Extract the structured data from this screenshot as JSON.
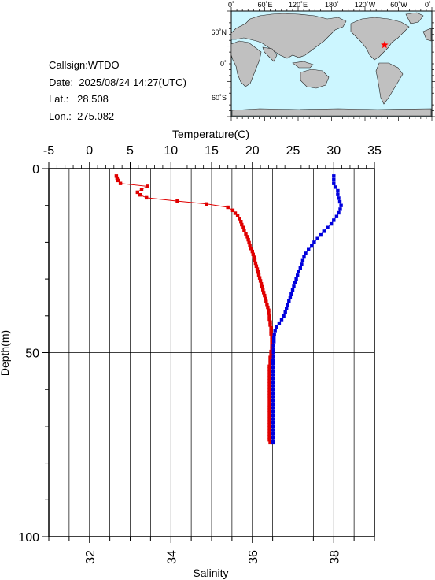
{
  "meta": {
    "callsign_label": "Callsign:",
    "callsign": "WTDO",
    "date_label": "Date:",
    "date": "2025/08/24 14:27(UTC)",
    "lat_label": "Lat.:",
    "lat": "28.508",
    "lon_label": "Lon.:",
    "lon": "275.082"
  },
  "map": {
    "lon_ticks": [
      "0˚",
      "60˚E",
      "120˚E",
      "180˚",
      "120˚W",
      "60˚W",
      "0˚"
    ],
    "lat_ticks": [
      "60˚N",
      "0˚",
      "60˚S"
    ],
    "ocean_color": "#ccf6ff",
    "land_color": "#c0c0c0",
    "marker_color": "#ff0000",
    "marker": {
      "lat": 28.508,
      "lon": 275.082
    }
  },
  "chart_data": {
    "type": "scatter",
    "top_xlabel": "Temperature(C)",
    "bottom_xlabel": "Salinity",
    "ylabel": "Depth(m)",
    "ylim": [
      100,
      0
    ],
    "temperature_xlim": [
      -5,
      35
    ],
    "salinity_xlim": [
      31,
      39
    ],
    "temperature_ticks": [
      "-5",
      "0",
      "5",
      "10",
      "15",
      "20",
      "25",
      "30",
      "35"
    ],
    "salinity_ticks": [
      "32",
      "34",
      "36",
      "38"
    ],
    "depth_ticks": [
      "0",
      "50",
      "100"
    ],
    "grid": true,
    "series": [
      {
        "key": "temperature",
        "color": "#e00000",
        "points": [
          [
            3.3,
            2.0
          ],
          [
            3.4,
            2.6
          ],
          [
            3.5,
            3.2
          ],
          [
            3.8,
            4.0
          ],
          [
            7.1,
            4.8
          ],
          [
            6.4,
            5.6
          ],
          [
            5.9,
            6.4
          ],
          [
            6.2,
            7.1
          ],
          [
            7.0,
            7.9
          ],
          [
            10.8,
            8.8
          ],
          [
            14.4,
            9.6
          ],
          [
            17.0,
            10.5
          ],
          [
            17.6,
            11.3
          ],
          [
            17.9,
            12.1
          ],
          [
            18.2,
            12.8
          ],
          [
            18.4,
            13.6
          ],
          [
            18.6,
            14.4
          ],
          [
            18.7,
            15.2
          ],
          [
            18.9,
            16.0
          ],
          [
            19.0,
            16.8
          ],
          [
            19.2,
            17.7
          ],
          [
            19.4,
            18.5
          ],
          [
            19.5,
            19.3
          ],
          [
            19.6,
            20.1
          ],
          [
            19.7,
            20.9
          ],
          [
            19.8,
            21.7
          ],
          [
            20.0,
            22.5
          ],
          [
            20.1,
            23.3
          ],
          [
            20.2,
            24.1
          ],
          [
            20.3,
            24.9
          ],
          [
            20.4,
            25.7
          ],
          [
            20.5,
            26.5
          ],
          [
            20.6,
            27.3
          ],
          [
            20.7,
            28.1
          ],
          [
            20.8,
            28.9
          ],
          [
            20.9,
            29.7
          ],
          [
            21.0,
            30.5
          ],
          [
            21.1,
            31.3
          ],
          [
            21.2,
            32.1
          ],
          [
            21.3,
            32.9
          ],
          [
            21.4,
            33.7
          ],
          [
            21.5,
            34.5
          ],
          [
            21.6,
            35.3
          ],
          [
            21.7,
            36.1
          ],
          [
            21.8,
            36.9
          ],
          [
            21.9,
            37.7
          ],
          [
            22.0,
            38.5
          ],
          [
            22.0,
            39.3
          ],
          [
            22.1,
            40.1
          ],
          [
            22.1,
            40.9
          ],
          [
            22.2,
            41.7
          ],
          [
            22.2,
            42.5
          ],
          [
            22.3,
            43.3
          ],
          [
            22.3,
            44.1
          ],
          [
            22.3,
            44.9
          ],
          [
            22.4,
            45.7
          ],
          [
            22.4,
            46.5
          ],
          [
            22.4,
            47.3
          ],
          [
            22.4,
            48.1
          ],
          [
            22.4,
            48.9
          ],
          [
            22.3,
            49.7
          ],
          [
            22.3,
            50.5
          ],
          [
            22.2,
            51.3
          ],
          [
            22.2,
            52.1
          ],
          [
            22.2,
            52.9
          ],
          [
            22.1,
            53.7
          ],
          [
            22.1,
            54.5
          ],
          [
            22.1,
            55.3
          ],
          [
            22.1,
            56.1
          ],
          [
            22.1,
            56.9
          ],
          [
            22.1,
            57.7
          ],
          [
            22.1,
            58.5
          ],
          [
            22.1,
            59.3
          ],
          [
            22.1,
            60.1
          ],
          [
            22.1,
            60.9
          ],
          [
            22.1,
            61.7
          ],
          [
            22.1,
            62.5
          ],
          [
            22.1,
            63.3
          ],
          [
            22.1,
            64.1
          ],
          [
            22.1,
            64.9
          ],
          [
            22.1,
            65.7
          ],
          [
            22.1,
            66.5
          ],
          [
            22.1,
            67.3
          ],
          [
            22.1,
            68.1
          ],
          [
            22.1,
            68.9
          ],
          [
            22.1,
            69.7
          ],
          [
            22.1,
            70.5
          ],
          [
            22.1,
            71.3
          ],
          [
            22.1,
            72.1
          ],
          [
            22.1,
            72.9
          ],
          [
            22.1,
            73.7
          ],
          [
            22.2,
            74.5
          ]
        ]
      },
      {
        "key": "salinity",
        "color": "#0000dd",
        "points": [
          [
            38.0,
            2.0
          ],
          [
            38.0,
            3.0
          ],
          [
            38.0,
            4.0
          ],
          [
            38.05,
            5.0
          ],
          [
            38.1,
            6.0
          ],
          [
            38.1,
            7.0
          ],
          [
            38.12,
            8.0
          ],
          [
            38.15,
            9.0
          ],
          [
            38.18,
            10.0
          ],
          [
            38.16,
            11.0
          ],
          [
            38.12,
            12.0
          ],
          [
            38.07,
            13.0
          ],
          [
            38.0,
            14.0
          ],
          [
            37.94,
            15.0
          ],
          [
            37.85,
            16.0
          ],
          [
            37.76,
            17.0
          ],
          [
            37.68,
            18.0
          ],
          [
            37.6,
            19.0
          ],
          [
            37.52,
            20.0
          ],
          [
            37.46,
            21.0
          ],
          [
            37.38,
            22.0
          ],
          [
            37.31,
            23.0
          ],
          [
            37.27,
            24.0
          ],
          [
            37.24,
            25.0
          ],
          [
            37.21,
            26.0
          ],
          [
            37.18,
            27.0
          ],
          [
            37.14,
            28.0
          ],
          [
            37.11,
            29.0
          ],
          [
            37.08,
            30.0
          ],
          [
            37.05,
            31.0
          ],
          [
            37.02,
            32.0
          ],
          [
            36.99,
            33.0
          ],
          [
            36.96,
            34.0
          ],
          [
            36.93,
            35.0
          ],
          [
            36.9,
            36.0
          ],
          [
            36.87,
            37.0
          ],
          [
            36.84,
            38.0
          ],
          [
            36.81,
            39.0
          ],
          [
            36.77,
            40.0
          ],
          [
            36.72,
            41.0
          ],
          [
            36.66,
            42.0
          ],
          [
            36.6,
            43.0
          ],
          [
            36.56,
            44.0
          ],
          [
            36.54,
            45.0
          ],
          [
            36.53,
            46.0
          ],
          [
            36.53,
            47.0
          ],
          [
            36.52,
            48.0
          ],
          [
            36.52,
            49.0
          ],
          [
            36.52,
            50.0
          ],
          [
            36.52,
            51.0
          ],
          [
            36.51,
            52.0
          ],
          [
            36.51,
            53.0
          ],
          [
            36.51,
            54.0
          ],
          [
            36.51,
            55.0
          ],
          [
            36.51,
            56.0
          ],
          [
            36.51,
            57.0
          ],
          [
            36.51,
            58.0
          ],
          [
            36.51,
            59.0
          ],
          [
            36.51,
            60.0
          ],
          [
            36.51,
            61.0
          ],
          [
            36.51,
            62.0
          ],
          [
            36.51,
            63.0
          ],
          [
            36.51,
            64.0
          ],
          [
            36.51,
            65.0
          ],
          [
            36.51,
            66.0
          ],
          [
            36.51,
            67.0
          ],
          [
            36.51,
            68.0
          ],
          [
            36.51,
            69.0
          ],
          [
            36.51,
            70.0
          ],
          [
            36.51,
            71.0
          ],
          [
            36.51,
            72.0
          ],
          [
            36.51,
            73.0
          ],
          [
            36.51,
            74.0
          ],
          [
            36.51,
            74.5
          ]
        ]
      }
    ]
  }
}
